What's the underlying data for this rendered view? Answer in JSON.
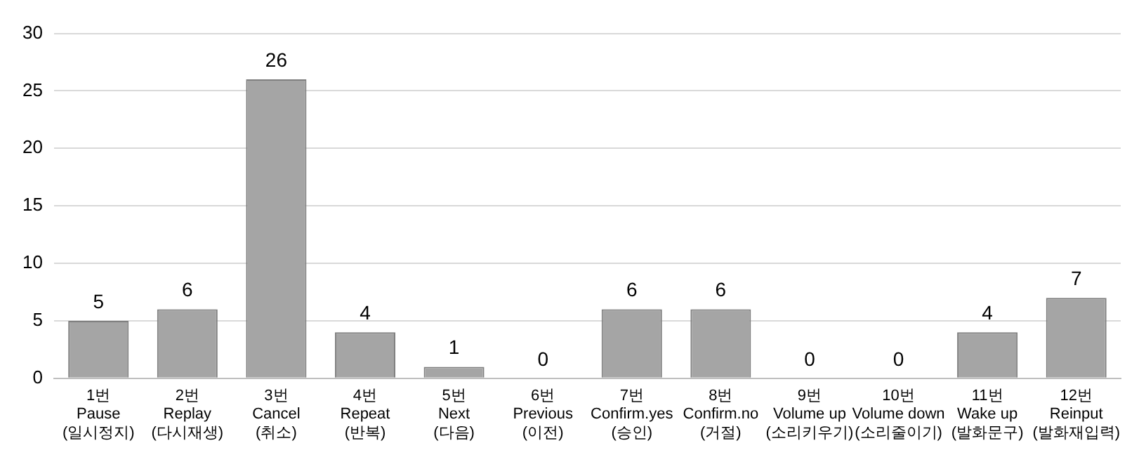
{
  "chart_data": {
    "type": "bar",
    "categories": [
      "1번\nPause\n(일시정지)",
      "2번\nReplay\n(다시재생)",
      "3번\nCancel\n(취소)",
      "4번\nRepeat\n(반복)",
      "5번\nNext\n(다음)",
      "6번\nPrevious\n(이전)",
      "7번\nConfirm.yes\n(승인)",
      "8번\nConfirm.no\n(거절)",
      "9번\nVolume up\n(소리키우기)",
      "10번\nVolume down\n(소리줄이기)",
      "11번\nWake up\n(발화문구)",
      "12번\nReinput\n(발화재입력)"
    ],
    "values": [
      5,
      6,
      26,
      4,
      1,
      0,
      6,
      6,
      0,
      0,
      4,
      7
    ],
    "color": "#a5a5a5",
    "ylim": [
      0,
      30
    ],
    "yticks": [
      0,
      5,
      10,
      15,
      20,
      25,
      30
    ],
    "grid": "y",
    "data_labels": true
  }
}
